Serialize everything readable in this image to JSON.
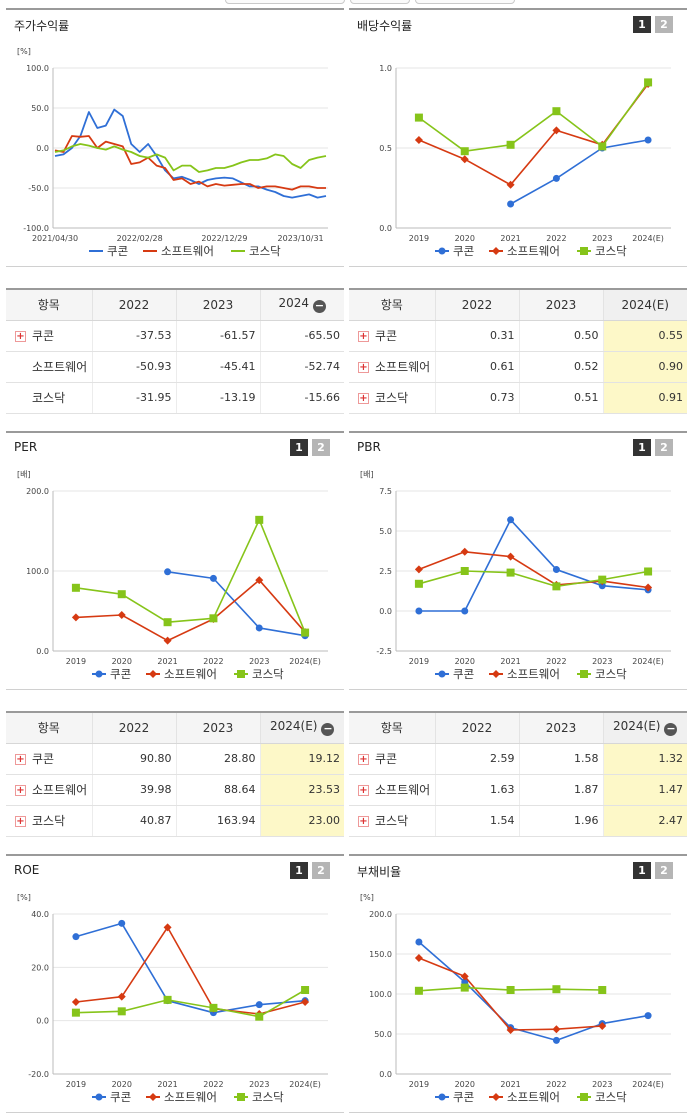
{
  "colors": {
    "coupang": "#2f6fd6",
    "software": "#d63a12",
    "kosdaq": "#86c41a"
  },
  "legend": [
    "쿠콘",
    "소프트웨어",
    "코스닥"
  ],
  "charts": [
    {
      "id": "stock-return",
      "title": "주가수익률",
      "has_toggle": false,
      "chart_data": {
        "type": "line",
        "title": "주가수익률",
        "ylabel": "[%]",
        "ylim": [
          -100,
          100
        ],
        "yticks": [
          "100.0",
          "50.0",
          "0.0",
          "-50.0",
          "-100.0"
        ],
        "xticks": [
          "2021/04/30",
          "2022/02/28",
          "2022/12/29",
          "2023/10/31"
        ],
        "series": [
          {
            "name": "쿠콘",
            "values": [
              -10,
              -8,
              0,
              15,
              45,
              25,
              28,
              48,
              40,
              5,
              -5,
              5,
              -10,
              -28,
              -38,
              -36,
              -40,
              -45,
              -40,
              -38,
              -37,
              -38,
              -43,
              -48,
              -48,
              -52,
              -55,
              -60,
              -62,
              -60,
              -58,
              -62,
              -60
            ]
          },
          {
            "name": "소프트웨어",
            "values": [
              -3,
              -5,
              15,
              14,
              15,
              0,
              8,
              5,
              2,
              -20,
              -18,
              -12,
              -22,
              -25,
              -40,
              -38,
              -45,
              -42,
              -48,
              -45,
              -47,
              -46,
              -45,
              -45,
              -50,
              -48,
              -48,
              -50,
              -52,
              -48,
              -48,
              -50,
              -50
            ]
          },
          {
            "name": "코스닥",
            "values": [
              -5,
              -3,
              2,
              5,
              3,
              0,
              -2,
              2,
              -2,
              -5,
              -10,
              -12,
              -8,
              -12,
              -28,
              -22,
              -22,
              -30,
              -28,
              -25,
              -25,
              -22,
              -18,
              -15,
              -15,
              -13,
              -8,
              -10,
              -20,
              -25,
              -15,
              -12,
              -10
            ]
          }
        ]
      }
    },
    {
      "id": "dividend-yield",
      "title": "배당수익률",
      "has_toggle": true,
      "toggle": [
        "1",
        "2"
      ],
      "chart_data": {
        "type": "line",
        "title": "배당수익률",
        "ylim": [
          0,
          1
        ],
        "yticks": [
          "1.0",
          "0.5",
          "0.0"
        ],
        "categories": [
          "2019",
          "2020",
          "2021",
          "2022",
          "2023",
          "2024(E)"
        ],
        "series": [
          {
            "name": "쿠콘",
            "values": [
              null,
              null,
              0.15,
              0.31,
              0.5,
              0.55
            ]
          },
          {
            "name": "소프트웨어",
            "values": [
              0.55,
              0.43,
              0.27,
              0.61,
              0.52,
              0.9
            ]
          },
          {
            "name": "코스닥",
            "values": [
              0.69,
              0.48,
              0.52,
              0.73,
              0.51,
              0.91
            ]
          }
        ]
      }
    },
    {
      "id": "per",
      "title": "PER",
      "has_toggle": true,
      "toggle": [
        "1",
        "2"
      ],
      "chart_data": {
        "type": "line",
        "title": "PER",
        "ylabel": "[배]",
        "ylim": [
          0,
          200
        ],
        "yticks": [
          "200.0",
          "100.0",
          "0.0"
        ],
        "categories": [
          "2019",
          "2020",
          "2021",
          "2022",
          "2023",
          "2024(E)"
        ],
        "series": [
          {
            "name": "쿠콘",
            "values": [
              null,
              null,
              99,
              90.8,
              28.8,
              19.12
            ]
          },
          {
            "name": "소프트웨어",
            "values": [
              42,
              45,
              13,
              39.98,
              88.64,
              23.53
            ]
          },
          {
            "name": "코스닥",
            "values": [
              79,
              71,
              36,
              40.87,
              163.94,
              23.0
            ]
          }
        ]
      }
    },
    {
      "id": "pbr",
      "title": "PBR",
      "has_toggle": true,
      "toggle": [
        "1",
        "2"
      ],
      "chart_data": {
        "type": "line",
        "title": "PBR",
        "ylabel": "[배]",
        "ylim": [
          -2.5,
          7.5
        ],
        "yticks": [
          "7.5",
          "5.0",
          "2.5",
          "0.0",
          "-2.5"
        ],
        "categories": [
          "2019",
          "2020",
          "2021",
          "2022",
          "2023",
          "2024(E)"
        ],
        "series": [
          {
            "name": "쿠콘",
            "values": [
              0,
              0,
              5.7,
              2.59,
              1.58,
              1.32
            ]
          },
          {
            "name": "소프트웨어",
            "values": [
              2.6,
              3.7,
              3.4,
              1.63,
              1.87,
              1.47
            ]
          },
          {
            "name": "코스닥",
            "values": [
              1.7,
              2.5,
              2.4,
              1.54,
              1.96,
              2.47
            ]
          }
        ]
      }
    },
    {
      "id": "roe",
      "title": "ROE",
      "has_toggle": true,
      "toggle": [
        "1",
        "2"
      ],
      "chart_data": {
        "type": "line",
        "title": "ROE",
        "ylabel": "[%]",
        "ylim": [
          -20,
          40
        ],
        "yticks": [
          "40.0",
          "20.0",
          "0.0",
          "-20.0"
        ],
        "categories": [
          "2019",
          "2020",
          "2021",
          "2022",
          "2023",
          "2024(E)"
        ],
        "series": [
          {
            "name": "쿠콘",
            "values": [
              31.5,
              36.5,
              7.5,
              3.0,
              6.0,
              7.5
            ]
          },
          {
            "name": "소프트웨어",
            "values": [
              7.0,
              9.0,
              35.0,
              4.5,
              2.5,
              7.0
            ]
          },
          {
            "name": "코스닥",
            "values": [
              3.0,
              3.5,
              7.8,
              4.8,
              1.5,
              11.5
            ]
          }
        ]
      }
    },
    {
      "id": "debt-ratio",
      "title": "부채비율",
      "has_toggle": true,
      "toggle": [
        "1",
        "2"
      ],
      "chart_data": {
        "type": "line",
        "title": "부채비율",
        "ylabel": "[%]",
        "ylim": [
          0,
          200
        ],
        "yticks": [
          "200.0",
          "150.0",
          "100.0",
          "50.0",
          "0.0"
        ],
        "categories": [
          "2019",
          "2020",
          "2021",
          "2022",
          "2023",
          "2024(E)"
        ],
        "series": [
          {
            "name": "쿠콘",
            "values": [
              165,
              115,
              58,
              42,
              63,
              73
            ]
          },
          {
            "name": "소프트웨어",
            "values": [
              145,
              122,
              55,
              56,
              60,
              null
            ]
          },
          {
            "name": "코스닥",
            "values": [
              104,
              108,
              105,
              106,
              105,
              null
            ]
          }
        ]
      }
    }
  ],
  "tables": [
    {
      "id": "stock-return-table",
      "headers": [
        "항목",
        "2022",
        "2023",
        "2024"
      ],
      "header_toggle": "minus",
      "highlight_last": false,
      "rows": [
        {
          "name": "쿠콘",
          "plus": true,
          "values": [
            "-37.53",
            "-61.57",
            "-65.50"
          ]
        },
        {
          "name": "소프트웨어",
          "plus": false,
          "values": [
            "-50.93",
            "-45.41",
            "-52.74"
          ]
        },
        {
          "name": "코스닥",
          "plus": false,
          "values": [
            "-31.95",
            "-13.19",
            "-15.66"
          ]
        }
      ]
    },
    {
      "id": "dividend-table",
      "headers": [
        "항목",
        "2022",
        "2023",
        "2024(E)"
      ],
      "header_toggle": "none",
      "highlight_last": true,
      "rows": [
        {
          "name": "쿠콘",
          "plus": true,
          "values": [
            "0.31",
            "0.50",
            "0.55"
          ]
        },
        {
          "name": "소프트웨어",
          "plus": true,
          "values": [
            "0.61",
            "0.52",
            "0.90"
          ]
        },
        {
          "name": "코스닥",
          "plus": true,
          "values": [
            "0.73",
            "0.51",
            "0.91"
          ]
        }
      ]
    },
    {
      "id": "per-table",
      "headers": [
        "항목",
        "2022",
        "2023",
        "2024(E)"
      ],
      "header_toggle": "minus",
      "highlight_last": true,
      "rows": [
        {
          "name": "쿠콘",
          "plus": true,
          "values": [
            "90.80",
            "28.80",
            "19.12"
          ]
        },
        {
          "name": "소프트웨어",
          "plus": true,
          "values": [
            "39.98",
            "88.64",
            "23.53"
          ]
        },
        {
          "name": "코스닥",
          "plus": true,
          "values": [
            "40.87",
            "163.94",
            "23.00"
          ]
        }
      ]
    },
    {
      "id": "pbr-table",
      "headers": [
        "항목",
        "2022",
        "2023",
        "2024(E)"
      ],
      "header_toggle": "minus",
      "highlight_last": true,
      "rows": [
        {
          "name": "쿠콘",
          "plus": true,
          "values": [
            "2.59",
            "1.58",
            "1.32"
          ]
        },
        {
          "name": "소프트웨어",
          "plus": true,
          "values": [
            "1.63",
            "1.87",
            "1.47"
          ]
        },
        {
          "name": "코스닥",
          "plus": true,
          "values": [
            "1.54",
            "1.96",
            "2.47"
          ]
        }
      ]
    }
  ]
}
